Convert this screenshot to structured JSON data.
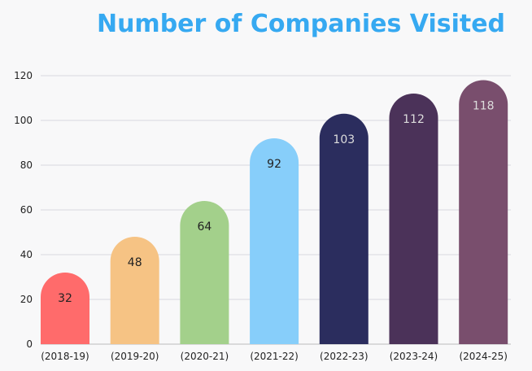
{
  "chart_data": {
    "type": "bar",
    "title": "Number of Companies Visited",
    "xlabel": "",
    "ylabel": "",
    "ylim": [
      0,
      120
    ],
    "yticks": [
      0,
      20,
      40,
      60,
      80,
      100,
      120
    ],
    "grid": true,
    "legend": "none",
    "categories": [
      "(2018-19)",
      "(2019-20)",
      "(2020-21)",
      "(2021-22)",
      "(2022-23)",
      "(2023-24)",
      "(2024-25)"
    ],
    "values": [
      32,
      48,
      64,
      92,
      103,
      112,
      118
    ],
    "colors": [
      "#ff6b6b",
      "#f6c384",
      "#a3d08b",
      "#87cefa",
      "#2b2d5e",
      "#4b3259",
      "#794e6d"
    ],
    "label_colors": [
      "#222222",
      "#222222",
      "#222222",
      "#222222",
      "#dddddd",
      "#dddddd",
      "#dddddd"
    ]
  }
}
